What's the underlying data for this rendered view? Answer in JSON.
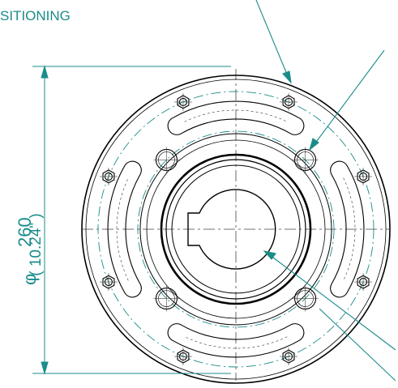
{
  "labels": {
    "top_left": "SITIONING",
    "dim_main": "260",
    "dim_inch": "( 10.24\" )",
    "phi": "φ"
  },
  "colors": {
    "accent": "#1b8c8a",
    "line": "#000000"
  },
  "parts": {
    "outer_bolt_count": 8,
    "inner_hole_count": 4,
    "lobe_count": 4
  }
}
